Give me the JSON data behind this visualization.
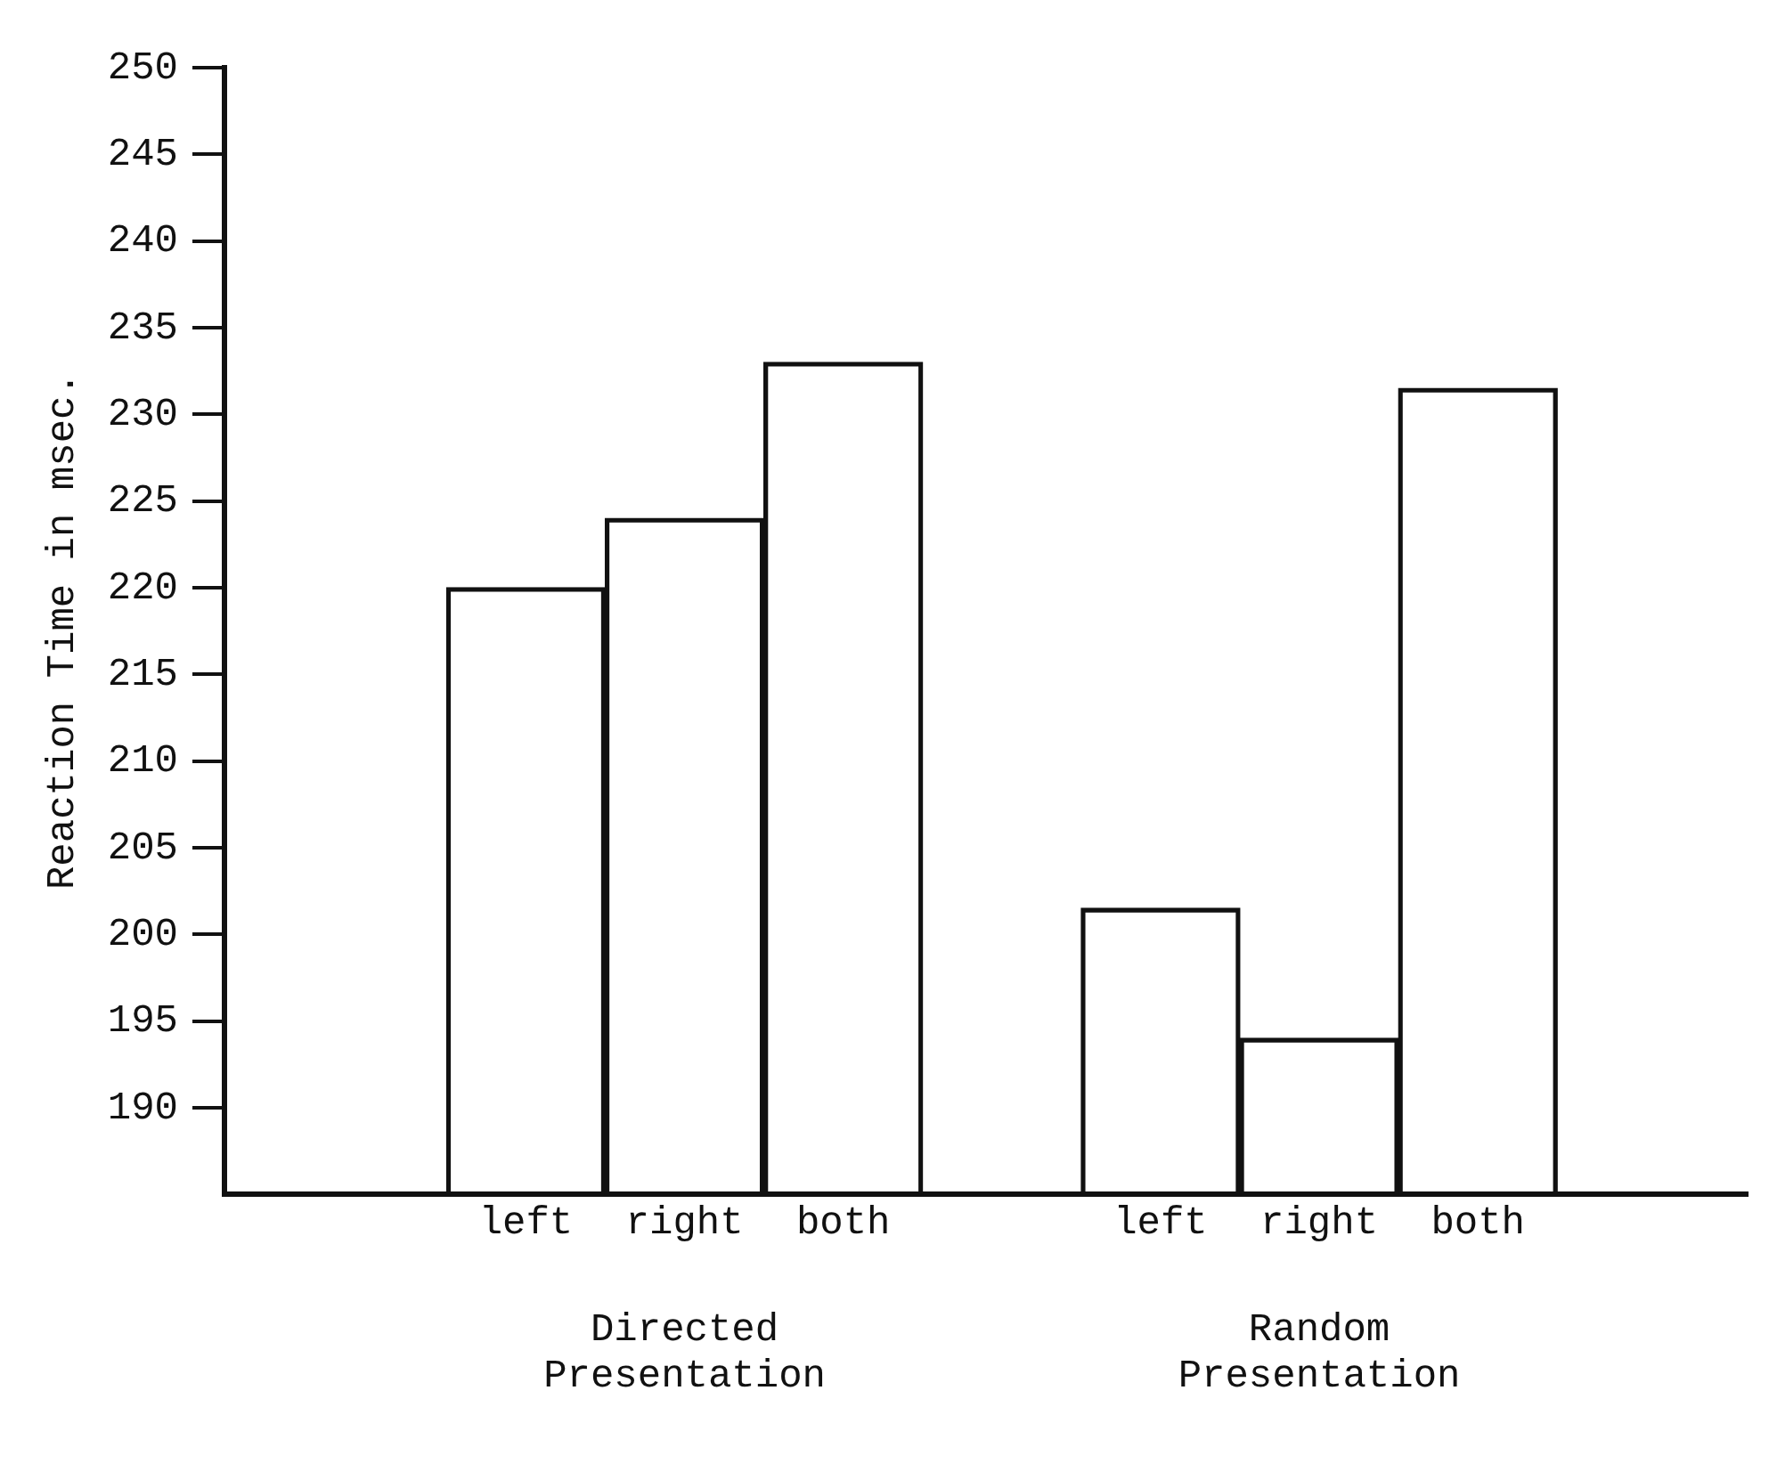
{
  "chart_data": {
    "type": "bar",
    "ylabel": "Reaction Time in msec.",
    "categories": [
      "left",
      "right",
      "both",
      "left",
      "right",
      "both"
    ],
    "values": [
      220,
      224,
      233,
      201.5,
      194,
      231.5
    ],
    "color": "#111111",
    "ylim": [
      185,
      250
    ],
    "yticks": [
      190,
      195,
      200,
      205,
      210,
      215,
      220,
      225,
      230,
      235,
      240,
      245,
      250
    ],
    "grid": false,
    "legend": false,
    "annotations": [
      "Directed Presentation",
      "Random Presentation"
    ]
  }
}
